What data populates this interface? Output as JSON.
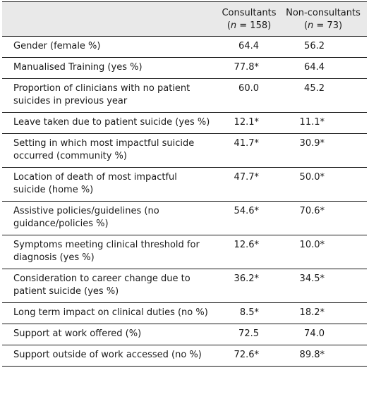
{
  "table": {
    "columns": {
      "label": "",
      "consultants": {
        "title": "Consultants",
        "n_open": "(",
        "n_symbol": "n",
        "n_rest": " = 158)"
      },
      "non_consultants": {
        "title": "Non-consultants",
        "n_open": "(",
        "n_symbol": "n",
        "n_rest": " = 73)"
      }
    },
    "rows": [
      {
        "label": "Gender (female %)",
        "consultants": "64.4",
        "non_consultants": "56.2"
      },
      {
        "label": "Manualised Training (yes %)",
        "consultants": "77.8*",
        "non_consultants": "64.4"
      },
      {
        "label": "Proportion of clinicians with no patient suicides in previous year",
        "consultants": "60.0",
        "non_consultants": "45.2"
      },
      {
        "label": "Leave taken due to patient suicide (yes %)",
        "consultants": "12.1*",
        "non_consultants": "11.1*"
      },
      {
        "label": "Setting in which most impactful suicide occurred (community %)",
        "consultants": "41.7*",
        "non_consultants": "30.9*"
      },
      {
        "label": "Location of death of most impactful suicide (home %)",
        "consultants": "47.7*",
        "non_consultants": "50.0*"
      },
      {
        "label": "Assistive policies/guidelines (no guidance/policies %)",
        "consultants": "54.6*",
        "non_consultants": "70.6*"
      },
      {
        "label": "Symptoms meeting clinical threshold for diagnosis (yes %)",
        "consultants": "12.6*",
        "non_consultants": "10.0*"
      },
      {
        "label": "Consideration to career change due to patient suicide (yes %)",
        "consultants": "36.2*",
        "non_consultants": "34.5*"
      },
      {
        "label": "Long term impact on clinical duties (no %)",
        "consultants": "8.5*",
        "non_consultants": "18.2*"
      },
      {
        "label": "Support at work offered (%)",
        "consultants": "72.5",
        "non_consultants": "74.0"
      },
      {
        "label": "Support outside of work accessed (no %)",
        "consultants": "72.6*",
        "non_consultants": "89.8*"
      }
    ]
  }
}
